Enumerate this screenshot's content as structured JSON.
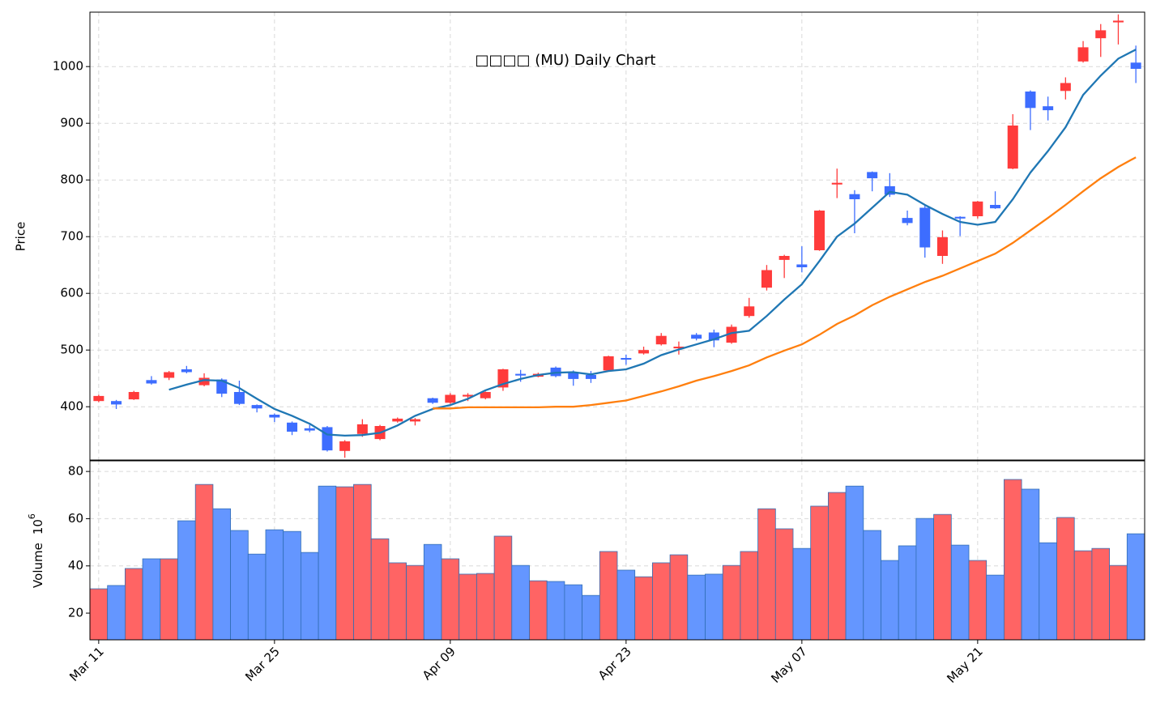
{
  "chart_data": [
    {
      "type": "candlestick",
      "title": "□□□□ (MU) Daily Chart",
      "ylabel": "Price",
      "ylim": [
        306,
        1096
      ],
      "yticks": [
        400,
        500,
        600,
        700,
        800,
        900,
        1000
      ],
      "grid": true,
      "up_color": "#ff3b3b",
      "down_color": "#3d6dff",
      "open": [
        410,
        410,
        413,
        447,
        451,
        466,
        438,
        448,
        426,
        403,
        386,
        372,
        362,
        364,
        322,
        352,
        343,
        374,
        374,
        415,
        407,
        418,
        415,
        434,
        458,
        453,
        469,
        460,
        456,
        464,
        486,
        494,
        510,
        503,
        527,
        531,
        513,
        560,
        610,
        659,
        651,
        676,
        792,
        775,
        814,
        789,
        733,
        751,
        666,
        735,
        736,
        756,
        820,
        956,
        930,
        957,
        1009,
        1050,
        1078,
        1007
      ],
      "high": [
        421,
        412,
        428,
        454,
        463,
        472,
        459,
        450,
        446,
        404,
        388,
        374,
        368,
        366,
        341,
        378,
        368,
        381,
        380,
        416,
        424,
        424,
        427,
        467,
        465,
        460,
        471,
        464,
        463,
        490,
        492,
        506,
        530,
        515,
        530,
        536,
        545,
        592,
        650,
        668,
        683,
        747,
        820,
        782,
        815,
        812,
        746,
        756,
        711,
        736,
        763,
        780,
        916,
        958,
        947,
        981,
        1045,
        1075,
        1092,
        1037
      ],
      "low": [
        408,
        396,
        412,
        439,
        447,
        459,
        436,
        417,
        403,
        390,
        373,
        350,
        355,
        321,
        310,
        347,
        341,
        372,
        367,
        405,
        405,
        410,
        413,
        428,
        444,
        452,
        452,
        437,
        442,
        462,
        474,
        492,
        508,
        492,
        517,
        505,
        511,
        557,
        605,
        627,
        637,
        675,
        768,
        706,
        780,
        770,
        720,
        663,
        652,
        701,
        732,
        749,
        819,
        888,
        905,
        942,
        1007,
        1017,
        1039,
        971
      ],
      "close": [
        419,
        404,
        426,
        441,
        461,
        461,
        451,
        423,
        405,
        397,
        381,
        356,
        358,
        323,
        339,
        369,
        366,
        379,
        378,
        407,
        421,
        421,
        426,
        466,
        455,
        458,
        454,
        449,
        449,
        489,
        483,
        500,
        525,
        506,
        520,
        517,
        541,
        577,
        641,
        666,
        646,
        746,
        795,
        766,
        803,
        774,
        724,
        681,
        699,
        732,
        762,
        750,
        896,
        927,
        923,
        971,
        1034,
        1064,
        1081,
        996
      ],
      "lines": [
        {
          "color": "#1f77b4",
          "values": [
            null,
            null,
            null,
            null,
            430,
            439,
            447,
            446,
            433,
            414,
            396,
            384,
            370,
            351,
            349,
            350,
            354,
            367,
            384,
            396,
            403,
            414,
            429,
            440,
            449,
            456,
            460,
            461,
            457,
            463,
            466,
            476,
            491,
            501,
            510,
            519,
            530,
            534,
            560,
            589,
            616,
            657,
            700,
            723,
            751,
            779,
            774,
            756,
            740,
            726,
            721,
            726,
            766,
            813,
            851,
            893,
            950,
            984,
            1014,
            1030
          ]
        },
        {
          "color": "#ff7f0e",
          "values": [
            null,
            null,
            null,
            null,
            null,
            null,
            null,
            null,
            null,
            null,
            null,
            null,
            null,
            null,
            null,
            null,
            null,
            null,
            null,
            397,
            397,
            399,
            399,
            399,
            399,
            399,
            400,
            400,
            403,
            407,
            411,
            419,
            427,
            436,
            446,
            454,
            463,
            473,
            487,
            499,
            510,
            527,
            546,
            561,
            579,
            594,
            607,
            620,
            631,
            644,
            657,
            670,
            689,
            711,
            733,
            756,
            780,
            803,
            823,
            840
          ]
        }
      ]
    },
    {
      "type": "bar",
      "ylabel": "Volume",
      "scale_base": "10",
      "scale_exponent": "6",
      "ylim": [
        8.7,
        84.5
      ],
      "yticks": [
        20,
        40,
        60,
        80
      ],
      "grid": true,
      "up_color": "#ff6464",
      "down_color": "#6496ff",
      "edge_color": "#2f6db5",
      "categories": [
        "Mar 11",
        null,
        null,
        null,
        null,
        null,
        null,
        null,
        null,
        null,
        "Mar 25",
        null,
        null,
        null,
        null,
        null,
        null,
        null,
        null,
        null,
        "Apr 09",
        null,
        null,
        null,
        null,
        null,
        null,
        null,
        null,
        null,
        "Apr 23",
        null,
        null,
        null,
        null,
        null,
        null,
        null,
        null,
        null,
        "May 07",
        null,
        null,
        null,
        null,
        null,
        null,
        null,
        null,
        null,
        "May 21",
        null,
        null,
        null,
        null,
        null,
        null,
        null,
        null,
        null
      ],
      "values": [
        30.3,
        31.7,
        38.9,
        43.0,
        43.0,
        59.1,
        74.5,
        64.2,
        55.0,
        45.0,
        55.3,
        54.6,
        45.7,
        73.8,
        73.5,
        74.5,
        51.5,
        41.3,
        40.2,
        49.1,
        43.0,
        36.5,
        36.8,
        52.6,
        40.2,
        33.7,
        33.4,
        32.0,
        27.5,
        46.1,
        38.2,
        35.4,
        41.3,
        44.7,
        36.1,
        36.5,
        40.2,
        46.1,
        64.2,
        55.7,
        47.4,
        65.3,
        71.1,
        73.8,
        55.0,
        42.3,
        48.5,
        60.1,
        61.8,
        48.8,
        42.3,
        36.1,
        76.6,
        72.5,
        49.8,
        60.5,
        46.4,
        47.4,
        40.2,
        53.6
      ]
    }
  ]
}
